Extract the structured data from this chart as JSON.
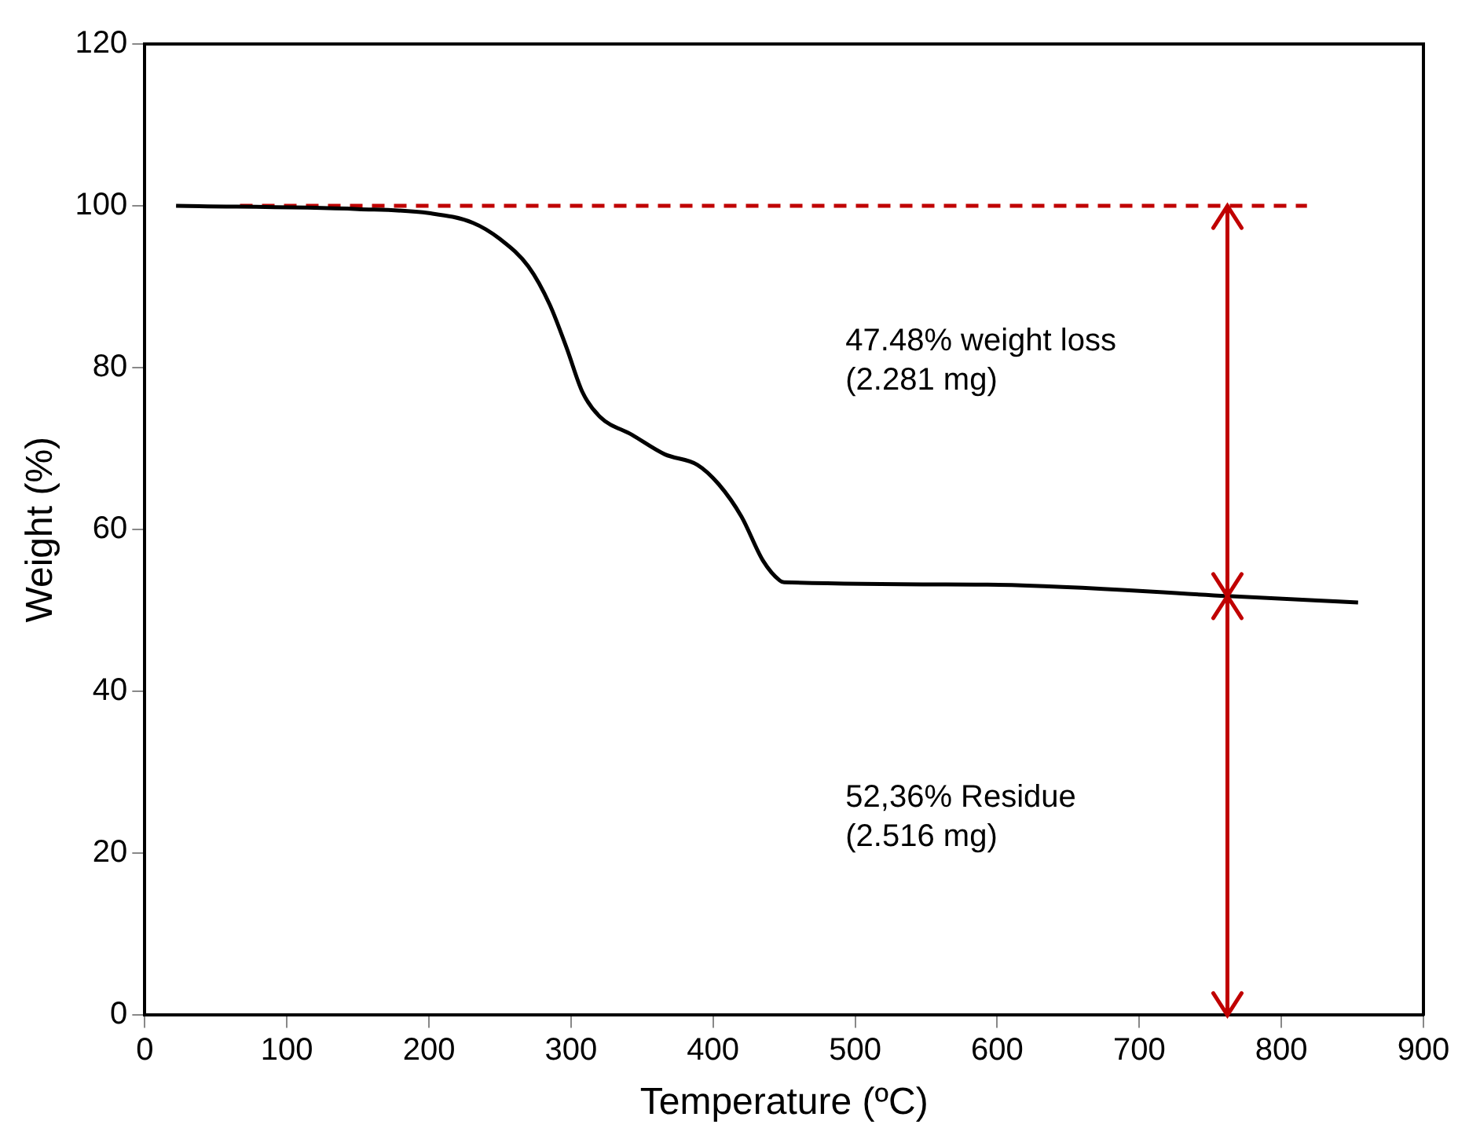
{
  "chart_data": {
    "type": "line",
    "xlabel": "Temperature (ºC)",
    "ylabel": "Weight (%)",
    "xlim": [
      0,
      900
    ],
    "xticks": [
      0,
      100,
      200,
      300,
      400,
      500,
      600,
      700,
      800,
      900
    ],
    "ylim": [
      0,
      120
    ],
    "yticks": [
      0,
      20,
      40,
      60,
      80,
      100,
      120
    ],
    "grid": false,
    "legend": false,
    "marker": "none",
    "series": [
      {
        "color": "#000000",
        "line_style": "solid",
        "x": [
          22,
          150,
          200,
          231,
          250,
          270,
          285,
          297,
          308,
          320,
          343,
          366,
          389,
          404,
          420,
          435,
          447,
          450,
          593,
          762,
          854
        ],
        "values": [
          100,
          99.6,
          99.1,
          97.9,
          95.9,
          92.5,
          87.8,
          82.4,
          77,
          74,
          71.7,
          69.3,
          68,
          65.6,
          61.6,
          56.2,
          53.7,
          53.5,
          53.2,
          51.8,
          51.0
        ]
      },
      {
        "color": "#c00000",
        "line_style": "dashed",
        "x": [
          67,
          818
        ],
        "values": [
          100,
          100
        ]
      }
    ],
    "annotations": [
      "47.48% weight loss\n(2.281 mg)",
      "52,36% Residue\n(2.516 mg)"
    ]
  }
}
